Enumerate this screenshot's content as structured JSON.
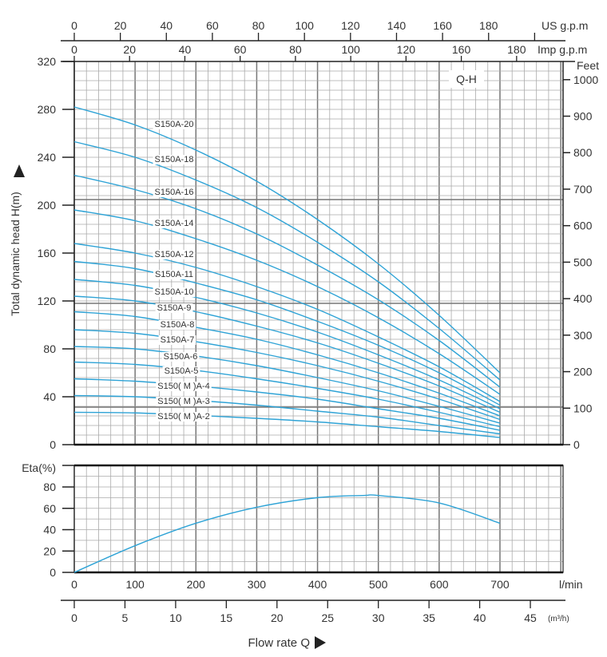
{
  "chart_data": [
    {
      "type": "line",
      "title": "Q-H",
      "xlabel": "Flow rate Q",
      "ylabel": "Total dynamic head  H(m)",
      "y2label": "Feet",
      "x_unit": "l/min",
      "xlim": [
        0,
        800
      ],
      "ylim": [
        0,
        320
      ],
      "grid": true,
      "x": [
        0,
        100,
        200,
        300,
        400,
        500,
        600,
        700
      ],
      "x_ticks": [
        "0",
        "100",
        "200",
        "300",
        "400",
        "500",
        "600",
        "700"
      ],
      "y_ticks": [
        "0",
        "40",
        "80",
        "120",
        "160",
        "200",
        "240",
        "280",
        "320"
      ],
      "y2_ticks": [
        "0",
        "100",
        "200",
        "300",
        "400",
        "500",
        "600",
        "700",
        "800",
        "900",
        "1000"
      ],
      "us_gpm": {
        "label": "US g.p.m",
        "ticks": [
          "0",
          "20",
          "40",
          "60",
          "80",
          "100",
          "120",
          "140",
          "160",
          "180"
        ]
      },
      "imp_gpm": {
        "label": "Imp g.p.m",
        "ticks": [
          "0",
          "20",
          "40",
          "60",
          "80",
          "100",
          "120",
          "160",
          "180"
        ]
      },
      "m3h": {
        "label": "(m³/h)",
        "ticks": [
          "0",
          "5",
          "10",
          "15",
          "20",
          "25",
          "30",
          "35",
          "40",
          "45"
        ]
      },
      "series": [
        {
          "name": "S150A-20",
          "values": [
            282,
            267,
            246,
            220,
            188,
            151,
            108,
            60
          ]
        },
        {
          "name": "S150A-18",
          "values": [
            253,
            240,
            221,
            198,
            169,
            136,
            97,
            54
          ]
        },
        {
          "name": "S150A-16",
          "values": [
            225,
            213,
            197,
            176,
            150,
            121,
            87,
            48
          ]
        },
        {
          "name": "S150A-14",
          "values": [
            196,
            187,
            172,
            154,
            132,
            106,
            76,
            42
          ]
        },
        {
          "name": "S150A-12",
          "values": [
            168,
            160,
            148,
            132,
            113,
            90,
            65,
            36
          ]
        },
        {
          "name": "S150A-11",
          "values": [
            153,
            147,
            135,
            121,
            103,
            83,
            60,
            33
          ]
        },
        {
          "name": "S150A-10",
          "values": [
            138,
            133,
            123,
            110,
            94,
            75,
            54,
            30
          ]
        },
        {
          "name": "S150A-9",
          "values": [
            124,
            120,
            111,
            99,
            85,
            68,
            49,
            27
          ]
        },
        {
          "name": "S150A-8",
          "values": [
            111,
            107,
            98,
            88,
            75,
            60,
            43,
            24
          ]
        },
        {
          "name": "S150A-7",
          "values": [
            96,
            93,
            86,
            77,
            66,
            53,
            38,
            21
          ]
        },
        {
          "name": "S150A-6",
          "values": [
            82,
            80,
            74,
            66,
            56,
            45,
            32,
            18
          ]
        },
        {
          "name": "S150A-5",
          "values": [
            69,
            67,
            62,
            55,
            47,
            38,
            27,
            15
          ]
        },
        {
          "name": "S150(M)A-4",
          "values": [
            55,
            53,
            49,
            44,
            38,
            30,
            22,
            12
          ]
        },
        {
          "name": "S150(M)A-3",
          "values": [
            41,
            40,
            37,
            33,
            28,
            23,
            16,
            9
          ]
        },
        {
          "name": "S150(M)A-2",
          "values": [
            27,
            26.5,
            24.5,
            22,
            19,
            15,
            11,
            6
          ]
        }
      ],
      "color": "#2ea3d6"
    },
    {
      "type": "line",
      "ylabel": "Eta(%)",
      "ylim": [
        0,
        100
      ],
      "y_ticks": [
        "0",
        "20",
        "40",
        "60",
        "80"
      ],
      "x": [
        0,
        100,
        200,
        300,
        400,
        475,
        500,
        600,
        700
      ],
      "series": [
        {
          "name": "Eta",
          "values": [
            0,
            25,
            46,
            61,
            70,
            72,
            72,
            65,
            46
          ]
        }
      ],
      "color": "#2ea3d6"
    }
  ]
}
